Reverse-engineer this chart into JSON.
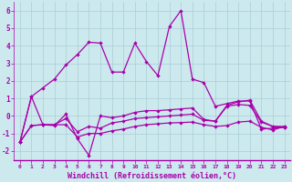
{
  "title": "",
  "xlabel": "Windchill (Refroidissement éolien,°C)",
  "background_color": "#cce9ee",
  "grid_color": "#aacdd6",
  "line_color": "#aa00aa",
  "x": [
    0,
    1,
    2,
    3,
    4,
    5,
    6,
    7,
    8,
    9,
    10,
    11,
    12,
    13,
    14,
    15,
    16,
    17,
    18,
    19,
    20,
    21,
    22,
    23
  ],
  "series1": [
    -1.5,
    1.1,
    1.6,
    2.1,
    2.9,
    3.5,
    4.2,
    4.15,
    2.5,
    2.5,
    4.15,
    3.1,
    2.3,
    5.1,
    6.0,
    2.1,
    1.9,
    0.55,
    0.7,
    0.85,
    0.85,
    -0.75,
    -0.7,
    -0.65
  ],
  "series2": [
    -1.5,
    1.1,
    -0.5,
    -0.55,
    0.1,
    -1.3,
    -2.25,
    0.0,
    -0.1,
    0.0,
    0.2,
    0.3,
    0.3,
    0.35,
    0.4,
    0.45,
    -0.2,
    -0.3,
    0.6,
    0.8,
    0.9,
    -0.3,
    -0.6,
    -0.65
  ],
  "series3": [
    -1.5,
    -0.55,
    -0.5,
    -0.5,
    -0.15,
    -0.9,
    -0.6,
    -0.7,
    -0.4,
    -0.3,
    -0.15,
    -0.1,
    -0.05,
    0.0,
    0.05,
    0.1,
    -0.25,
    -0.3,
    0.55,
    0.65,
    0.6,
    -0.35,
    -0.6,
    -0.6
  ],
  "series4": [
    -1.5,
    -0.55,
    -0.5,
    -0.5,
    -0.5,
    -1.2,
    -1.0,
    -1.0,
    -0.85,
    -0.75,
    -0.6,
    -0.5,
    -0.45,
    -0.4,
    -0.38,
    -0.35,
    -0.5,
    -0.6,
    -0.55,
    -0.35,
    -0.3,
    -0.65,
    -0.8,
    -0.6
  ],
  "ylim": [
    -2.5,
    6.5
  ],
  "xlim": [
    -0.5,
    23.5
  ],
  "yticks": [
    -2,
    -1,
    0,
    1,
    2,
    3,
    4,
    5,
    6
  ]
}
